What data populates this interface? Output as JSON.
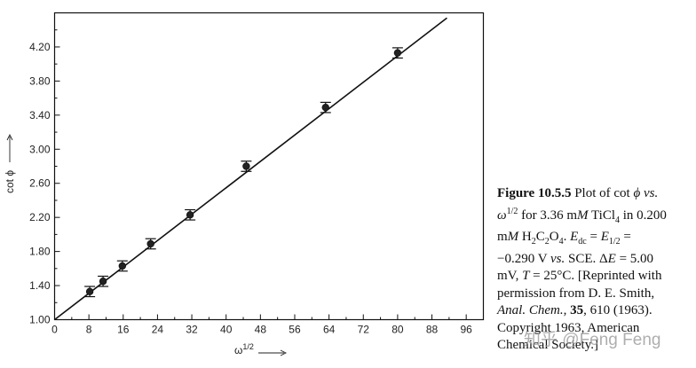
{
  "chart_data": {
    "type": "scatter",
    "xlabel": "ω",
    "xlabel_sup": "1/2",
    "ylabel": "cot ϕ",
    "xlim": [
      0,
      100
    ],
    "ylim": [
      1.0,
      4.6
    ],
    "x_ticks": [
      "0",
      "8",
      "16",
      "24",
      "32",
      "40",
      "48",
      "56",
      "64",
      "72",
      "80",
      "88",
      "96"
    ],
    "y_ticks": [
      "1.00",
      "1.40",
      "1.80",
      "2.20",
      "2.60",
      "3.00",
      "3.40",
      "3.80",
      "4.20"
    ],
    "grid": false,
    "series": [
      {
        "points": [
          {
            "x": 8.2,
            "y": 1.33,
            "err": 0.06
          },
          {
            "x": 11.3,
            "y": 1.45,
            "err": 0.06
          },
          {
            "x": 15.8,
            "y": 1.63,
            "err": 0.06
          },
          {
            "x": 22.4,
            "y": 1.89,
            "err": 0.06
          },
          {
            "x": 31.6,
            "y": 2.23,
            "err": 0.06
          },
          {
            "x": 44.7,
            "y": 2.8,
            "err": 0.06
          },
          {
            "x": 63.2,
            "y": 3.49,
            "err": 0.06
          },
          {
            "x": 80.0,
            "y": 4.13,
            "err": 0.06
          }
        ]
      }
    ],
    "fit_line": {
      "x": [
        0,
        91.5
      ],
      "y": [
        1.0,
        4.54
      ]
    }
  },
  "caption": {
    "figure_number": "Figure 10.5.5",
    "line1_text": " Plot of cot ",
    "line1_phi": "ϕ",
    "line1_vs": " vs.",
    "line2_omega": "ω",
    "line2_sup": "1/2",
    "line2_rest": " for 3.36 m",
    "line2_M": "M",
    "line2_end": " TiCl",
    "line2_sub": "4",
    "line2_in": " in 0.200",
    "line3_m": "m",
    "line3_M": "M",
    "line3_h": " H",
    "line3_sub2a": "2",
    "line3_c": "C",
    "line3_sub2b": "2",
    "line3_o": "O",
    "line3_sub4": "4",
    "line3_dot": ". ",
    "line3_E": "E",
    "line3_sub_dc": "dc",
    "line3_eq": " = ",
    "line3_E2": "E",
    "line3_sub_half": "1/2",
    "line3_eq2": " =",
    "line4_val": "−0.290 V ",
    "line4_vs": "vs.",
    "line4_sce": " SCE. Δ",
    "line4_E": "E",
    "line4_rest": " = 5.00",
    "line5_mv": "mV, ",
    "line5_T": "T",
    "line5_rest": " = 25°C. [Reprinted with",
    "line6": "permission from D. E. Smith,",
    "line7_journal": "Anal. Chem.",
    "line7_sep": ", ",
    "line7_vol": "35",
    "line7_rest": ", 610 (1963).",
    "line8": "Copyright 1963, American",
    "line9": "Chemical Society.]"
  },
  "watermark": "知乎 @Feng Feng"
}
